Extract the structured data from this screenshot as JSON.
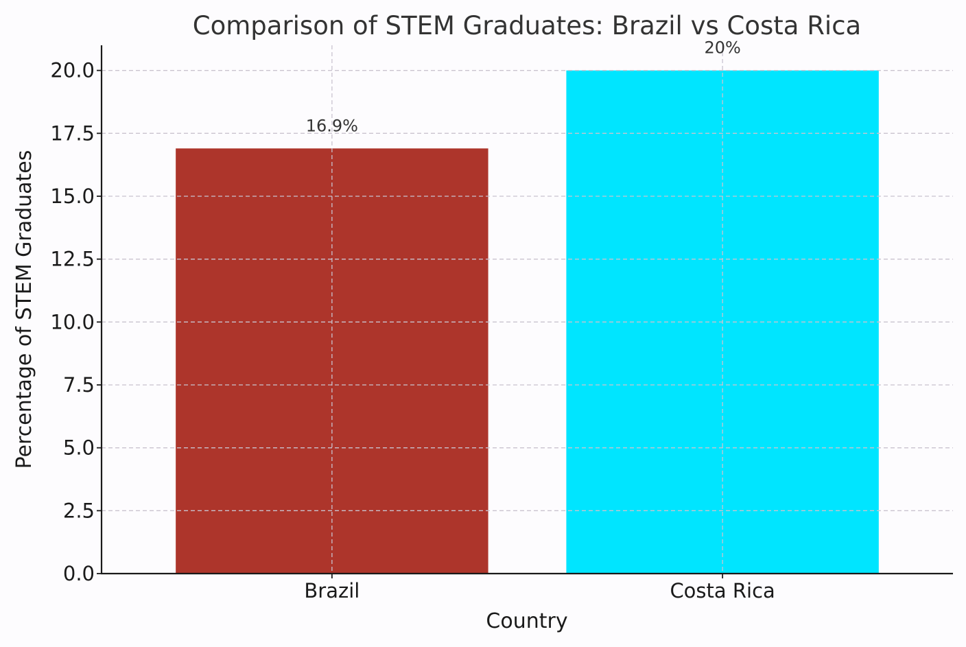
{
  "chart_data": {
    "type": "bar",
    "title": "Comparison of STEM Graduates: Brazil vs Costa Rica",
    "xlabel": "Country",
    "ylabel": "Percentage of STEM Graduates",
    "categories": [
      "Brazil",
      "Costa Rica"
    ],
    "values": [
      16.9,
      20
    ],
    "value_labels": [
      "16.9%",
      "20%"
    ],
    "colors": [
      "#ad352b",
      "#00e5ff"
    ],
    "ylim": [
      0,
      21
    ],
    "yticks": [
      0.0,
      2.5,
      5.0,
      7.5,
      10.0,
      12.5,
      15.0,
      17.5,
      20.0
    ],
    "ytick_labels": [
      "0.0",
      "2.5",
      "5.0",
      "7.5",
      "10.0",
      "12.5",
      "15.0",
      "17.5",
      "20.0"
    ],
    "grid": true,
    "legend": "none"
  }
}
